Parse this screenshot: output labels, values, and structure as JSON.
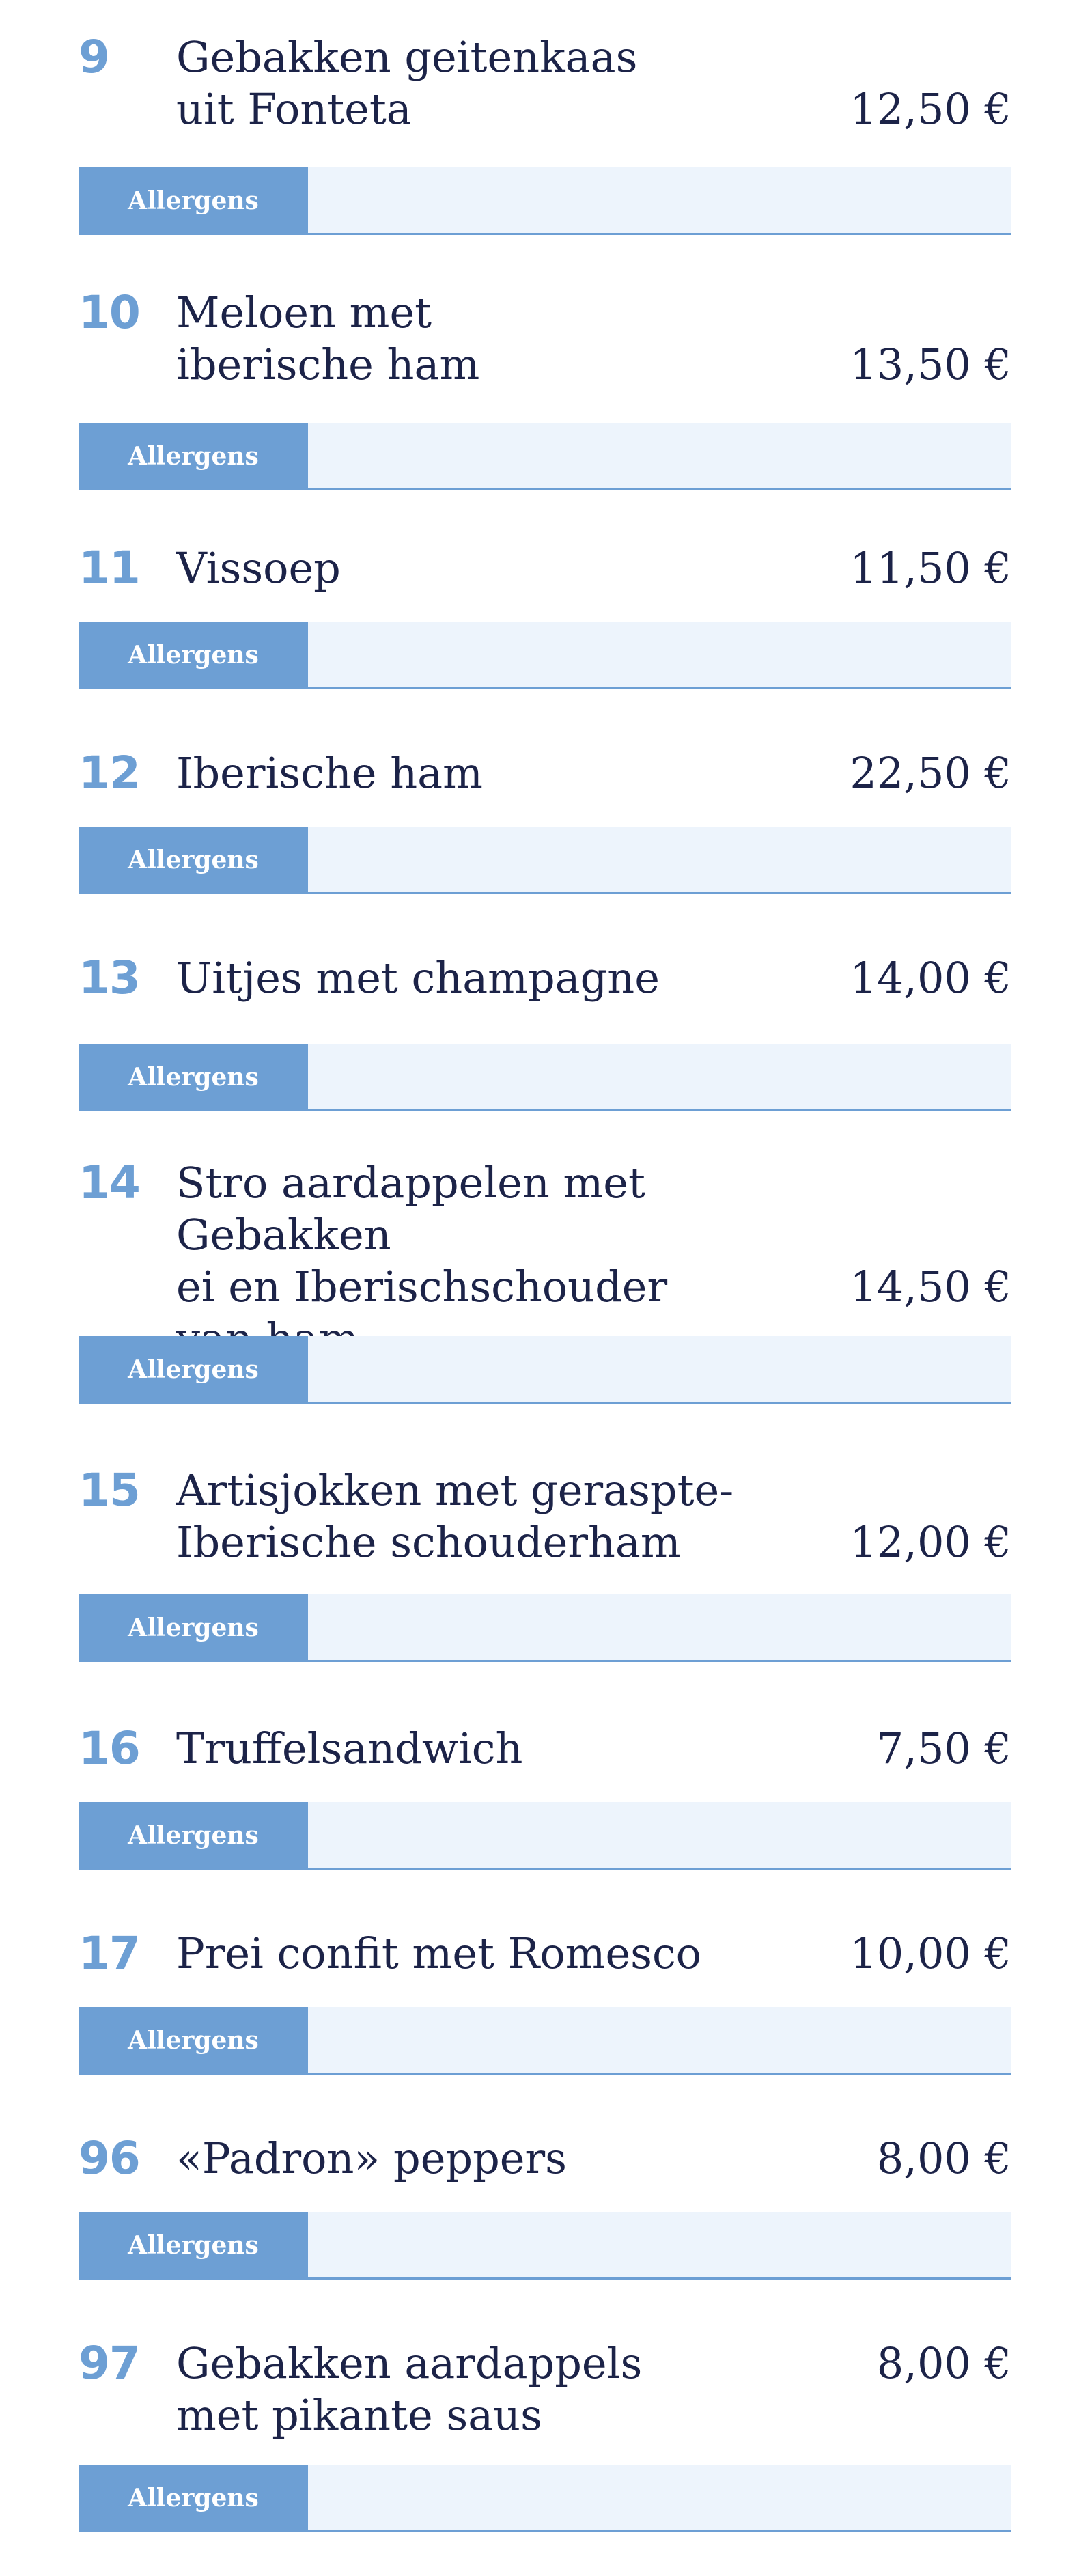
{
  "menu": {
    "allergens_label": "Allergens",
    "items": [
      {
        "number": "9",
        "name": "Gebakken geitenkaas\nuit Fonteta",
        "price": "12,50 €"
      },
      {
        "number": "10",
        "name": "Meloen met\niberische ham",
        "price": "13,50 €"
      },
      {
        "number": "11",
        "name": "Vissoep",
        "price": "11,50 €"
      },
      {
        "number": "12",
        "name": "Iberische ham",
        "price": "22,50 €"
      },
      {
        "number": "13",
        "name": "Uitjes met champagne",
        "price": "14,00 €"
      },
      {
        "number": "14",
        "name": "Stro aardappelen met Gebakken\nei en Iberischschouder\nvan ham",
        "price": "14,50 €"
      },
      {
        "number": "15",
        "name": "Artisjokken met geraspte-\nIberische schouderham",
        "price": "12,00 €"
      },
      {
        "number": "16",
        "name": "Truffelsandwich",
        "price": "7,50 €"
      },
      {
        "number": "17",
        "name": "Prei confit met Romesco",
        "price": "10,00 €"
      },
      {
        "number": "96",
        "name": "«Padron» peppers",
        "price": "8,00 €"
      },
      {
        "number": "97",
        "name": "Gebakken aardappels\nmet pikante saus",
        "price": "8,00 €"
      }
    ]
  }
}
